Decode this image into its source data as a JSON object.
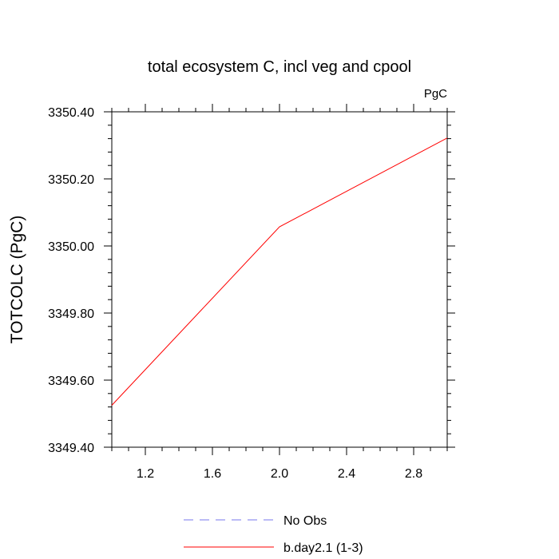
{
  "chart_data": {
    "type": "line",
    "title": "total ecosystem C, incl veg and cpool",
    "units": "PgC",
    "ylabel": "TOTCOLC  (PgC)",
    "xlabel": "",
    "xlim": [
      1.0,
      3.0
    ],
    "ylim": [
      3349.4,
      3350.4
    ],
    "x_ticks": [
      1.2,
      1.6,
      2.0,
      2.4,
      2.8
    ],
    "x_tick_labels": [
      "1.2",
      "1.6",
      "2.0",
      "2.4",
      "2.8"
    ],
    "y_ticks": [
      3349.4,
      3349.6,
      3349.8,
      3350.0,
      3350.2,
      3350.4
    ],
    "y_tick_labels": [
      "3349.40",
      "3349.60",
      "3349.80",
      "3350.00",
      "3350.20",
      "3350.40"
    ],
    "grid": false,
    "legend_position": "bottom",
    "series": [
      {
        "name": "No Obs",
        "color": "#7777ee",
        "dash": "dashed",
        "x": [],
        "values": []
      },
      {
        "name": "b.day2.1 (1-3)",
        "color": "#ff0000",
        "dash": "solid",
        "x": [
          1.0,
          2.0,
          3.0
        ],
        "values": [
          3349.525,
          3350.057,
          3350.322
        ]
      }
    ]
  }
}
